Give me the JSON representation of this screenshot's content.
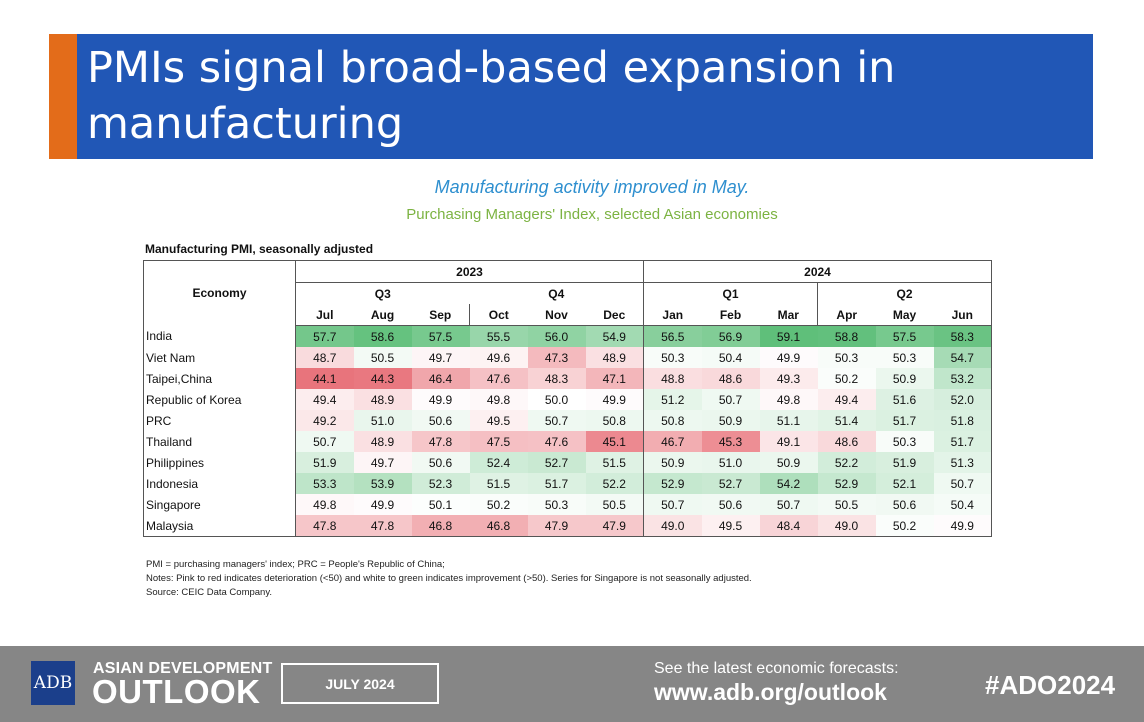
{
  "header": {
    "title": "PMIs signal broad-based expansion in manufacturing",
    "accent_color": "#e36c1a",
    "bar_color": "#2157b6"
  },
  "chart_data": {
    "type": "table",
    "title": "Manufacturing activity improved in May.",
    "subtitle": "Purchasing Managers' Index, selected Asian economies",
    "caption": "Manufacturing PMI, seasonally adjusted",
    "economy_label": "Economy",
    "years": [
      {
        "label": "2023",
        "quarters": [
          {
            "label": "Q3",
            "months": [
              "Jul",
              "Aug",
              "Sep"
            ]
          },
          {
            "label": "Q4",
            "months": [
              "Oct",
              "Nov",
              "Dec"
            ]
          }
        ]
      },
      {
        "label": "2024",
        "quarters": [
          {
            "label": "Q1",
            "months": [
              "Jan",
              "Feb",
              "Mar"
            ]
          },
          {
            "label": "Q2",
            "months": [
              "Apr",
              "May",
              "Jun"
            ]
          }
        ]
      }
    ],
    "rows": [
      {
        "economy": "India",
        "values": [
          "57.7",
          "58.6",
          "57.5",
          "55.5",
          "56.0",
          "54.9",
          "56.5",
          "56.9",
          "59.1",
          "58.8",
          "57.5",
          "58.3"
        ]
      },
      {
        "economy": "Viet Nam",
        "values": [
          "48.7",
          "50.5",
          "49.7",
          "49.6",
          "47.3",
          "48.9",
          "50.3",
          "50.4",
          "49.9",
          "50.3",
          "50.3",
          "54.7"
        ]
      },
      {
        "economy": "Taipei,China",
        "values": [
          "44.1",
          "44.3",
          "46.4",
          "47.6",
          "48.3",
          "47.1",
          "48.8",
          "48.6",
          "49.3",
          "50.2",
          "50.9",
          "53.2"
        ]
      },
      {
        "economy": "Republic of Korea",
        "values": [
          "49.4",
          "48.9",
          "49.9",
          "49.8",
          "50.0",
          "49.9",
          "51.2",
          "50.7",
          "49.8",
          "49.4",
          "51.6",
          "52.0"
        ]
      },
      {
        "economy": "PRC",
        "values": [
          "49.2",
          "51.0",
          "50.6",
          "49.5",
          "50.7",
          "50.8",
          "50.8",
          "50.9",
          "51.1",
          "51.4",
          "51.7",
          "51.8"
        ]
      },
      {
        "economy": "Thailand",
        "values": [
          "50.7",
          "48.9",
          "47.8",
          "47.5",
          "47.6",
          "45.1",
          "46.7",
          "45.3",
          "49.1",
          "48.6",
          "50.3",
          "51.7"
        ]
      },
      {
        "economy": "Philippines",
        "values": [
          "51.9",
          "49.7",
          "50.6",
          "52.4",
          "52.7",
          "51.5",
          "50.9",
          "51.0",
          "50.9",
          "52.2",
          "51.9",
          "51.3"
        ]
      },
      {
        "economy": "Indonesia",
        "values": [
          "53.3",
          "53.9",
          "52.3",
          "51.5",
          "51.7",
          "52.2",
          "52.9",
          "52.7",
          "54.2",
          "52.9",
          "52.1",
          "50.7"
        ]
      },
      {
        "economy": "Singapore",
        "values": [
          "49.8",
          "49.9",
          "50.1",
          "50.2",
          "50.3",
          "50.5",
          "50.7",
          "50.6",
          "50.7",
          "50.5",
          "50.6",
          "50.4"
        ]
      },
      {
        "economy": "Malaysia",
        "values": [
          "47.8",
          "47.8",
          "46.8",
          "46.8",
          "47.9",
          "47.9",
          "49.0",
          "49.5",
          "48.4",
          "49.0",
          "50.2",
          "49.9"
        ]
      }
    ],
    "color_scale": {
      "low": "#e8727a",
      "mid": "#ffffff",
      "high": "#5fbf7a",
      "threshold": 50
    }
  },
  "notes": {
    "line1": "PMI = purchasing managers' index; PRC = People's Republic of China;",
    "line2": "Notes: Pink to red indicates deterioration (<50) and white to green indicates improvement (>50). Series for Singapore is not seasonally adjusted.",
    "line3": "Source: CEIC Data Company."
  },
  "footer": {
    "logo_text": "ADB",
    "brand_top": "ASIAN DEVELOPMENT",
    "brand_big": "OUTLOOK",
    "date": "JULY 2024",
    "cta": "See the latest economic forecasts:",
    "url": "www.adb.org/outlook",
    "hashtag": "#ADO2024"
  }
}
